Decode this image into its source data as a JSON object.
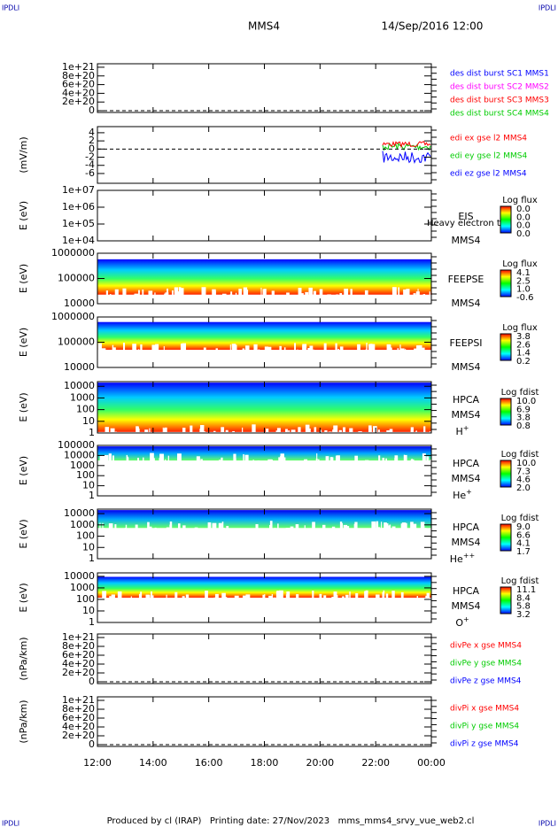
{
  "header": {
    "left": "IPDLI",
    "right": "IPDLI",
    "title": "MMS4",
    "date": "14/Sep/2016 12:00"
  },
  "footer": {
    "left": "IPDLI",
    "right": "IPDLI",
    "text": "Produced by cl (IRAP)   Printing date: 27/Nov/2023   mms_mms4_srvy_vue_web2.cl"
  },
  "xticks": [
    "12:00",
    "14:00",
    "16:00",
    "18:00",
    "20:00",
    "22:00",
    "00:00"
  ],
  "panels": [
    {
      "scale": "linear",
      "ylim": [
        -4e+19,
        1.08e+21
      ],
      "zero_line": true,
      "yticks": [
        {
          "value": 1e+21,
          "label": "1e+21"
        },
        {
          "value": 8e+20,
          "label": "8e+20"
        },
        {
          "value": 6e+20,
          "label": "6e+20"
        },
        {
          "value": 4e+20,
          "label": "4e+20"
        },
        {
          "value": 2e+20,
          "label": "2e+20"
        },
        0
      ],
      "legend": [
        {
          "text": "des dist burst SC1 MMS1",
          "color": "#0000ff"
        },
        {
          "text": "des dist burst SC2 MMS2",
          "color": "#ff00ff"
        },
        {
          "text": "des dist burst SC3 MMS3",
          "color": "#ff0000"
        },
        {
          "text": "des dist burst SC4 MMS4",
          "color": "#00cc00"
        }
      ]
    },
    {
      "ylabel": "(mV/m)",
      "scale": "linear",
      "ylim": [
        -8.4,
        5.5
      ],
      "zero_line": true,
      "yticks": [
        4,
        2,
        0,
        -2,
        -4,
        -6
      ],
      "legend": [
        {
          "text": "edi ex gse l2 MMS4",
          "color": "#ff0000"
        },
        {
          "text": "edi ey gse l2 MMS4",
          "color": "#00cc00"
        },
        {
          "text": "edi ez gse l2 MMS4",
          "color": "#0000ff"
        }
      ]
    },
    {
      "ylabel": "E (eV)",
      "scale": "log",
      "ylim": [
        10000,
        10000000
      ],
      "yticks": [
        {
          "value": 10000000,
          "label": "1e+07"
        },
        {
          "value": 1000000,
          "label": "1e+06"
        },
        {
          "value": 100000,
          "label": "1e+05"
        },
        {
          "value": 10000,
          "label": "1e+04"
        }
      ],
      "instrument": [
        "EIS",
        "MMS4"
      ],
      "note": "Heavy electron to",
      "colorbar": {
        "title": "Log flux",
        "labels": [
          "0.0",
          "0.0",
          "0.0",
          "0.0"
        ]
      }
    },
    {
      "ylabel": "E (eV)",
      "scale": "log",
      "ylim": [
        10000,
        1000000
      ],
      "yticks": [
        1000000,
        100000,
        10000
      ],
      "instrument": [
        "FEEPSE",
        "MMS4"
      ],
      "colorbar": {
        "title": "Log flux",
        "labels": [
          "4.1",
          "2.5",
          "1.0",
          "-0.6"
        ]
      }
    },
    {
      "ylabel": "E (eV)",
      "scale": "log",
      "ylim": [
        10000,
        1000000
      ],
      "yticks": [
        1000000,
        100000,
        10000
      ],
      "instrument": [
        "FEEPSI",
        "MMS4"
      ],
      "colorbar": {
        "title": "Log flux",
        "labels": [
          "3.8",
          "2.6",
          "1.4",
          "0.2"
        ]
      }
    },
    {
      "ylabel": "E (eV)",
      "scale": "log",
      "ylim": [
        1,
        25000
      ],
      "yticks": [
        10000,
        1000,
        100,
        10,
        1
      ],
      "instrument": [
        "HPCA",
        "MMS4"
      ],
      "species": {
        "base": "H",
        "sup": "+"
      },
      "colorbar": {
        "title": "Log fdist",
        "labels": [
          "10.0",
          "6.9",
          "3.8",
          "0.8"
        ]
      }
    },
    {
      "ylabel": "E (eV)",
      "scale": "log",
      "ylim": [
        1,
        100000
      ],
      "yticks": [
        100000,
        10000,
        1000,
        100,
        10,
        1
      ],
      "instrument": [
        "HPCA",
        "MMS4"
      ],
      "species": {
        "base": "He",
        "sup": "+"
      },
      "colorbar": {
        "title": "Log fdist",
        "labels": [
          "10.0",
          "7.3",
          "4.6",
          "2.0"
        ]
      }
    },
    {
      "ylabel": "E (eV)",
      "scale": "log",
      "ylim": [
        1,
        25000
      ],
      "yticks": [
        10000,
        1000,
        100,
        10,
        1
      ],
      "instrument": [
        "HPCA",
        "MMS4"
      ],
      "species": {
        "base": "He",
        "sup": "++"
      },
      "colorbar": {
        "title": "Log fdist",
        "labels": [
          "9.0",
          "6.6",
          "4.1",
          "1.7"
        ]
      }
    },
    {
      "ylabel": "E (eV)",
      "scale": "log",
      "ylim": [
        1,
        20000
      ],
      "yticks": [
        10000,
        1000,
        100,
        10,
        1
      ],
      "instrument": [
        "HPCA",
        "MMS4"
      ],
      "species": {
        "base": "O",
        "sup": "+"
      },
      "colorbar": {
        "title": "Log fdist",
        "labels": [
          "11.1",
          "8.4",
          "5.8",
          "3.2"
        ]
      }
    },
    {
      "ylabel": "(nPa/km)",
      "scale": "linear",
      "ylim": [
        -4e+19,
        1.08e+21
      ],
      "zero_line": true,
      "yticks": [
        {
          "value": 1e+21,
          "label": "1e+21"
        },
        {
          "value": 8e+20,
          "label": "8e+20"
        },
        {
          "value": 6e+20,
          "label": "6e+20"
        },
        {
          "value": 4e+20,
          "label": "4e+20"
        },
        {
          "value": 2e+20,
          "label": "2e+20"
        },
        0
      ],
      "legend": [
        {
          "text": "divPe x gse MMS4",
          "color": "#ff0000"
        },
        {
          "text": "divPe y gse MMS4",
          "color": "#00cc00"
        },
        {
          "text": "divPe z gse MMS4",
          "color": "#0000ff"
        }
      ]
    },
    {
      "ylabel": "(nPa/km)",
      "scale": "linear",
      "ylim": [
        -4e+19,
        1.08e+21
      ],
      "zero_line": true,
      "yticks": [
        {
          "value": 1e+21,
          "label": "1e+21"
        },
        {
          "value": 8e+20,
          "label": "8e+20"
        },
        {
          "value": 6e+20,
          "label": "6e+20"
        },
        {
          "value": 4e+20,
          "label": "4e+20"
        },
        {
          "value": 2e+20,
          "label": "2e+20"
        },
        0
      ],
      "legend": [
        {
          "text": "divPi x gse MMS4",
          "color": "#ff0000"
        },
        {
          "text": "divPi y gse MMS4",
          "color": "#00cc00"
        },
        {
          "text": "divPi z gse MMS4",
          "color": "#0000ff"
        }
      ]
    }
  ]
}
